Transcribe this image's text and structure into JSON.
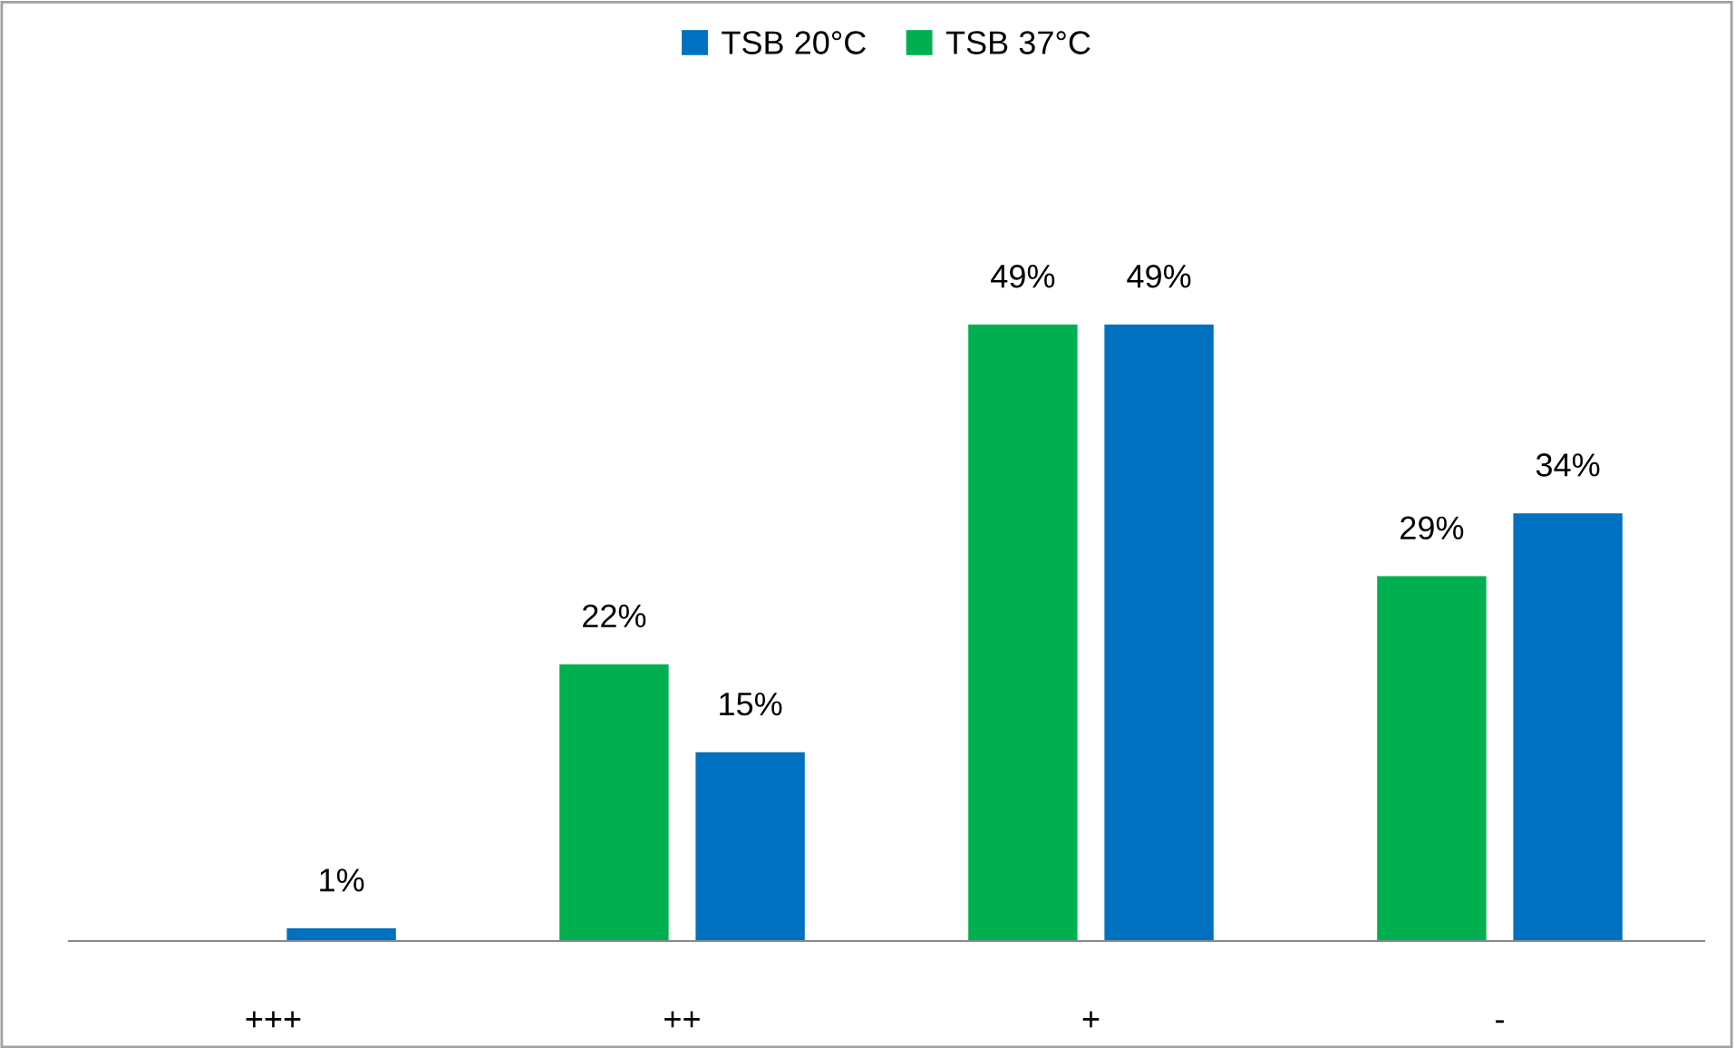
{
  "chart_data": {
    "type": "bar",
    "categories": [
      "+++",
      "++",
      "+",
      "-"
    ],
    "series": [
      {
        "name": "TSB 20°C",
        "color": "#0070c0",
        "values": [
          1,
          15,
          49,
          34
        ],
        "value_labels": [
          "1%",
          "15%",
          "49%",
          "34%"
        ]
      },
      {
        "name": "TSB 37°C",
        "color": "#00b050",
        "values": [
          null,
          22,
          49,
          29
        ],
        "value_labels": [
          null,
          "22%",
          "49%",
          "29%"
        ]
      }
    ],
    "legend": "top"
  }
}
